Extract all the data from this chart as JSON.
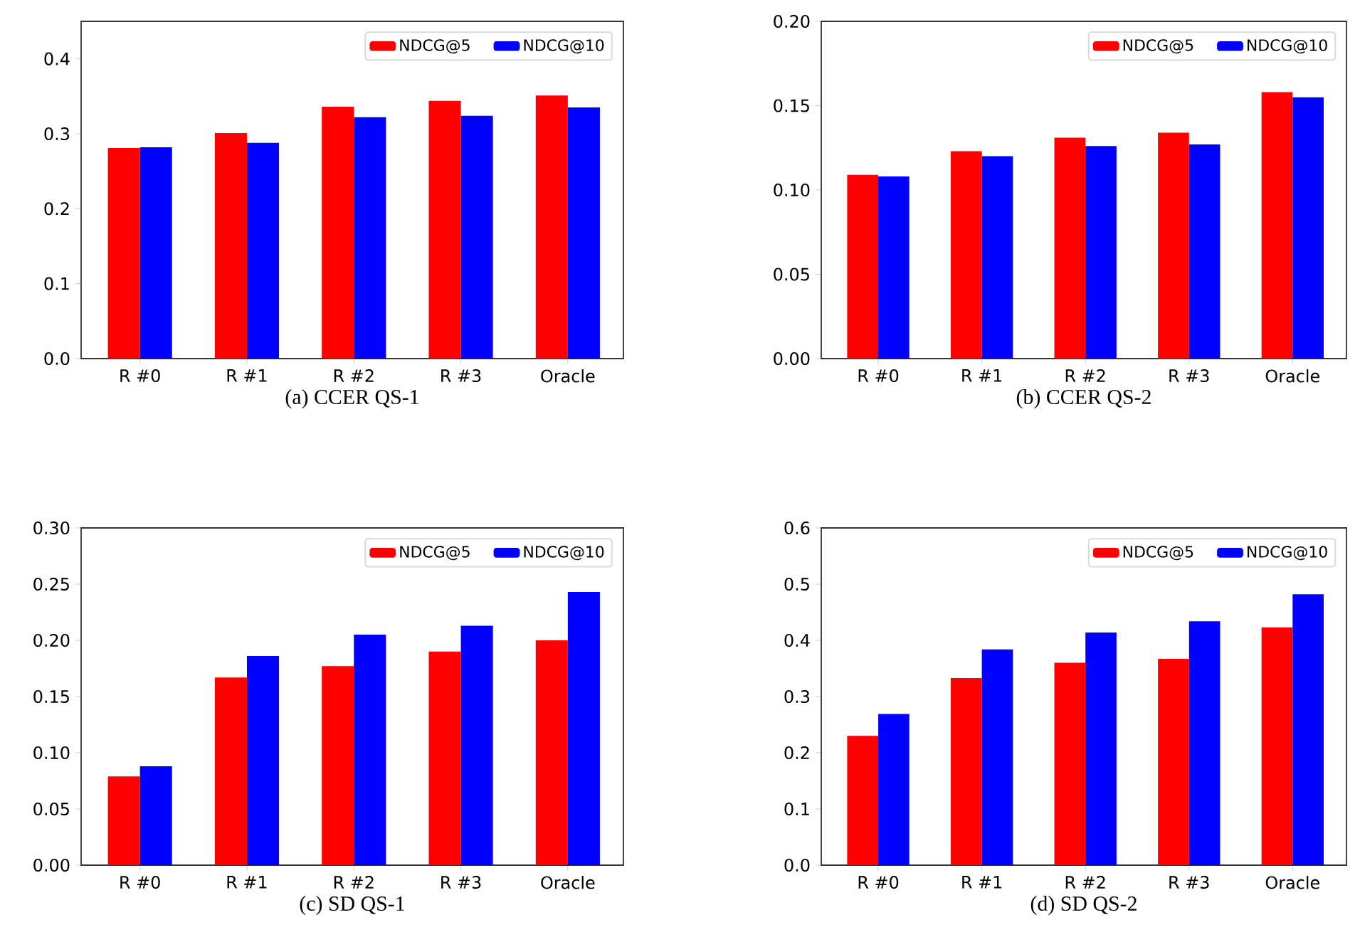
{
  "chart_data": [
    {
      "type": "bar",
      "title": "(a) CCER QS-1",
      "categories": [
        "R #0",
        "R #1",
        "R #2",
        "R #3",
        "Oracle"
      ],
      "series": [
        {
          "name": "NDCG@5",
          "color": "#ff0000",
          "values": [
            0.281,
            0.301,
            0.336,
            0.344,
            0.351
          ]
        },
        {
          "name": "NDCG@10",
          "color": "#0000ff",
          "values": [
            0.282,
            0.288,
            0.322,
            0.324,
            0.335
          ]
        }
      ],
      "ylim": [
        0,
        0.45
      ],
      "yticks": [
        {
          "value": 0,
          "label": "0.0"
        },
        {
          "value": 0.1,
          "label": "0.1"
        },
        {
          "value": 0.2,
          "label": "0.2"
        },
        {
          "value": 0.3,
          "label": "0.3"
        },
        {
          "value": 0.4,
          "label": "0.4"
        }
      ],
      "legend": "top right"
    },
    {
      "type": "bar",
      "title": "(b) CCER QS-2",
      "categories": [
        "R #0",
        "R #1",
        "R #2",
        "R #3",
        "Oracle"
      ],
      "series": [
        {
          "name": "NDCG@5",
          "color": "#ff0000",
          "values": [
            0.109,
            0.123,
            0.131,
            0.134,
            0.158
          ]
        },
        {
          "name": "NDCG@10",
          "color": "#0000ff",
          "values": [
            0.108,
            0.12,
            0.126,
            0.127,
            0.155
          ]
        }
      ],
      "ylim": [
        0,
        0.2
      ],
      "yticks": [
        {
          "value": 0,
          "label": "0.00"
        },
        {
          "value": 0.05,
          "label": "0.05"
        },
        {
          "value": 0.1,
          "label": "0.10"
        },
        {
          "value": 0.15,
          "label": "0.15"
        },
        {
          "value": 0.2,
          "label": "0.20"
        }
      ],
      "legend": "top right"
    },
    {
      "type": "bar",
      "title": "(c) SD QS-1",
      "categories": [
        "R #0",
        "R #1",
        "R #2",
        "R #3",
        "Oracle"
      ],
      "series": [
        {
          "name": "NDCG@5",
          "color": "#ff0000",
          "values": [
            0.079,
            0.167,
            0.177,
            0.19,
            0.2
          ]
        },
        {
          "name": "NDCG@10",
          "color": "#0000ff",
          "values": [
            0.088,
            0.186,
            0.205,
            0.213,
            0.243
          ]
        }
      ],
      "ylim": [
        0,
        0.3
      ],
      "yticks": [
        {
          "value": 0,
          "label": "0.00"
        },
        {
          "value": 0.05,
          "label": "0.05"
        },
        {
          "value": 0.1,
          "label": "0.10"
        },
        {
          "value": 0.15,
          "label": "0.15"
        },
        {
          "value": 0.2,
          "label": "0.20"
        },
        {
          "value": 0.25,
          "label": "0.25"
        },
        {
          "value": 0.3,
          "label": "0.30"
        }
      ],
      "legend": "top right"
    },
    {
      "type": "bar",
      "title": "(d) SD QS-2",
      "categories": [
        "R #0",
        "R #1",
        "R #2",
        "R #3",
        "Oracle"
      ],
      "series": [
        {
          "name": "NDCG@5",
          "color": "#ff0000",
          "values": [
            0.23,
            0.333,
            0.36,
            0.367,
            0.423
          ]
        },
        {
          "name": "NDCG@10",
          "color": "#0000ff",
          "values": [
            0.269,
            0.384,
            0.414,
            0.434,
            0.482
          ]
        }
      ],
      "ylim": [
        0,
        0.6
      ],
      "yticks": [
        {
          "value": 0,
          "label": "0.0"
        },
        {
          "value": 0.1,
          "label": "0.1"
        },
        {
          "value": 0.2,
          "label": "0.2"
        },
        {
          "value": 0.3,
          "label": "0.3"
        },
        {
          "value": 0.4,
          "label": "0.4"
        },
        {
          "value": 0.5,
          "label": "0.5"
        },
        {
          "value": 0.6,
          "label": "0.6"
        }
      ],
      "legend": "top right"
    }
  ]
}
